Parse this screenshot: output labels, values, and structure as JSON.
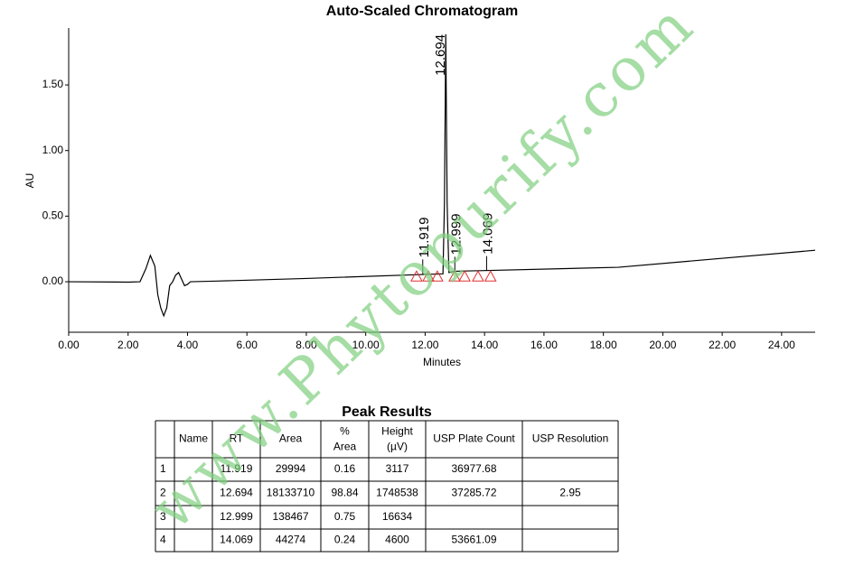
{
  "chart_data": {
    "type": "line",
    "title": "Auto-Scaled Chromatogram",
    "x_label": "Minutes",
    "y_label": "AU",
    "xlim": [
      0,
      25.13
    ],
    "ylim": [
      -0.385,
      1.934
    ],
    "xticks": [
      {
        "value": 0,
        "label": "0.00"
      },
      {
        "value": 2,
        "label": "2.00"
      },
      {
        "value": 4,
        "label": "4.00"
      },
      {
        "value": 6,
        "label": "6.00"
      },
      {
        "value": 8,
        "label": "8.00"
      },
      {
        "value": 10,
        "label": "10.00"
      },
      {
        "value": 12,
        "label": "12.00"
      },
      {
        "value": 14,
        "label": "14.00"
      },
      {
        "value": 16,
        "label": "16.00"
      },
      {
        "value": 18,
        "label": "18.00"
      },
      {
        "value": 20,
        "label": "20.00"
      },
      {
        "value": 22,
        "label": "22.00"
      },
      {
        "value": 24,
        "label": "24.00"
      }
    ],
    "yticks": [
      {
        "value": 0,
        "label": "0.00"
      },
      {
        "value": 0.5,
        "label": "0.50"
      },
      {
        "value": 1,
        "label": "1.00"
      },
      {
        "value": 1.5,
        "label": "1.50"
      }
    ],
    "x": [
      0,
      2.0,
      2.4,
      2.6,
      2.75,
      2.9,
      3.0,
      3.1,
      3.2,
      3.3,
      3.4,
      3.5,
      3.6,
      3.7,
      3.8,
      3.9,
      4.0,
      4.1,
      5.0,
      8.0,
      11.9,
      12.6,
      12.65,
      12.694,
      12.74,
      12.8,
      13.0,
      14.0,
      18.5,
      25.13
    ],
    "series": [
      {
        "color": "#000000",
        "values": [
          0,
          -0.003,
          0,
          0.1,
          0.2,
          0.12,
          -0.1,
          -0.2,
          -0.26,
          -0.2,
          -0.03,
          0,
          0.05,
          0.07,
          0.02,
          -0.03,
          -0.02,
          0,
          0.005,
          0.025,
          0.055,
          0.06,
          0.6,
          1.886,
          0.6,
          0.07,
          0.08,
          0.085,
          0.11,
          0.24
        ]
      }
    ],
    "annotations": [
      {
        "x": 11.919,
        "y": 0.06,
        "label": "11.919"
      },
      {
        "x": 12.694,
        "y": 1.886,
        "label": "12.694"
      },
      {
        "x": 12.999,
        "y": 0.08,
        "label": "12.999"
      },
      {
        "x": 14.069,
        "y": 0.085,
        "label": "14.069"
      }
    ],
    "markers": {
      "color": "#e03030",
      "x": [
        11.71,
        12.11,
        12.41,
        12.99,
        13.33,
        13.78,
        14.2
      ],
      "y": [
        0.04,
        0.04,
        0.04,
        0.04,
        0.04,
        0.04,
        0.04
      ]
    }
  },
  "table": {
    "title": "Peak Results",
    "headers": [
      "Name",
      "RT",
      "Area",
      "% Area",
      "Height (µV)",
      "USP Plate Count",
      "USP Resolution"
    ],
    "rows": [
      [
        1,
        null,
        11.919,
        29994,
        0.16,
        3117,
        36977.68,
        null
      ],
      [
        2,
        null,
        12.694,
        18133710,
        98.84,
        1748538,
        37285.72,
        2.95
      ],
      [
        3,
        null,
        12.999,
        138467,
        0.75,
        16634,
        null,
        null
      ],
      [
        4,
        null,
        14.069,
        44274,
        0.24,
        4600,
        53661.09,
        null
      ]
    ]
  },
  "watermark": "www.Phytopurify.com"
}
